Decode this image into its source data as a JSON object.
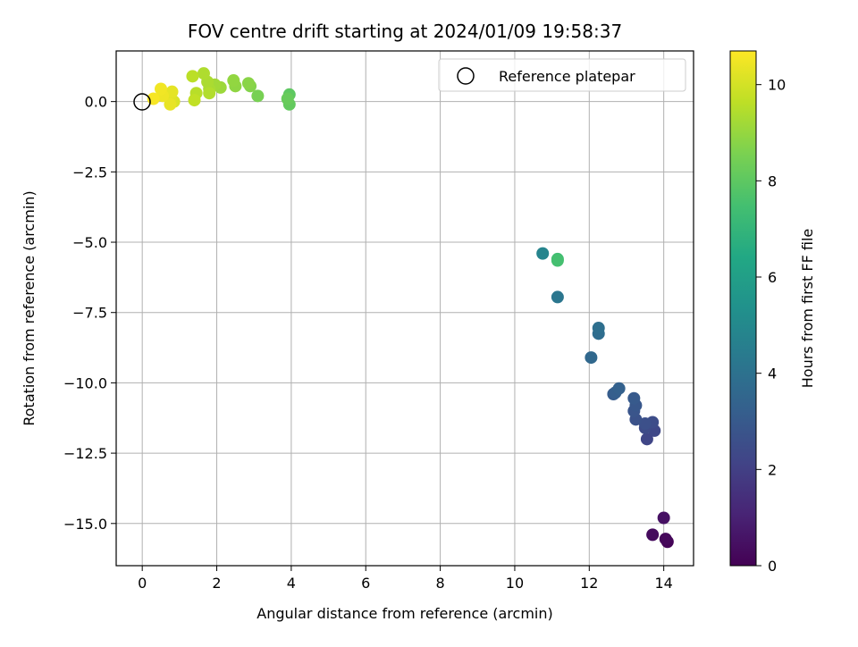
{
  "chart_data": {
    "type": "scatter",
    "title": "FOV centre drift starting at 2024/01/09 19:58:37",
    "xlabel": "Angular distance from reference (arcmin)",
    "ylabel": "Rotation from reference (arcmin)",
    "xlim": [
      -0.7,
      14.8
    ],
    "ylim": [
      -16.5,
      1.8
    ],
    "xticks": [
      0,
      2,
      4,
      6,
      8,
      10,
      12,
      14
    ],
    "xtick_labels": [
      "0",
      "2",
      "4",
      "6",
      "8",
      "10",
      "12",
      "14"
    ],
    "yticks": [
      0.0,
      -2.5,
      -5.0,
      -7.5,
      -10.0,
      -12.5,
      -15.0
    ],
    "ytick_labels": [
      "0.0",
      "−2.5",
      "−5.0",
      "−7.5",
      "−10.0",
      "−12.5",
      "−15.0"
    ],
    "grid": true,
    "legend": {
      "placement": "top-right",
      "entries": [
        "Reference platepar"
      ]
    },
    "reference": {
      "x": 0,
      "y": 0
    },
    "colorbar": {
      "label": "Hours from first FF file",
      "colormap": "viridis",
      "range": [
        0,
        10.7
      ],
      "ticks": [
        0,
        2,
        4,
        6,
        8,
        10
      ],
      "tick_labels": [
        "0",
        "2",
        "4",
        "6",
        "8",
        "10"
      ]
    },
    "points": [
      {
        "x": 14.1,
        "y": -15.65,
        "hours": 0.1
      },
      {
        "x": 14.05,
        "y": -15.55,
        "hours": 0.2
      },
      {
        "x": 13.7,
        "y": -15.4,
        "hours": 0.3
      },
      {
        "x": 14.0,
        "y": -14.8,
        "hours": 0.5
      },
      {
        "x": 13.55,
        "y": -12.0,
        "hours": 2.2
      },
      {
        "x": 13.75,
        "y": -11.7,
        "hours": 2.3
      },
      {
        "x": 13.5,
        "y": -11.6,
        "hours": 2.4
      },
      {
        "x": 13.7,
        "y": -11.4,
        "hours": 2.5
      },
      {
        "x": 13.5,
        "y": -11.45,
        "hours": 2.6
      },
      {
        "x": 13.25,
        "y": -11.3,
        "hours": 2.7
      },
      {
        "x": 13.2,
        "y": -11.0,
        "hours": 2.8
      },
      {
        "x": 13.25,
        "y": -10.8,
        "hours": 2.9
      },
      {
        "x": 13.2,
        "y": -10.55,
        "hours": 3.0
      },
      {
        "x": 12.65,
        "y": -10.4,
        "hours": 3.1
      },
      {
        "x": 12.7,
        "y": -10.35,
        "hours": 3.2
      },
      {
        "x": 12.8,
        "y": -10.2,
        "hours": 3.3
      },
      {
        "x": 12.05,
        "y": -9.1,
        "hours": 3.6
      },
      {
        "x": 12.25,
        "y": -8.25,
        "hours": 3.8
      },
      {
        "x": 12.25,
        "y": -8.05,
        "hours": 3.9
      },
      {
        "x": 11.15,
        "y": -6.95,
        "hours": 4.2
      },
      {
        "x": 10.75,
        "y": -5.4,
        "hours": 4.8
      },
      {
        "x": 11.15,
        "y": -5.6,
        "hours": 7.4
      },
      {
        "x": 11.15,
        "y": -5.65,
        "hours": 7.5
      },
      {
        "x": 3.95,
        "y": 0.25,
        "hours": 8.0
      },
      {
        "x": 3.95,
        "y": -0.1,
        "hours": 8.1
      },
      {
        "x": 3.9,
        "y": 0.1,
        "hours": 8.2
      },
      {
        "x": 3.1,
        "y": 0.2,
        "hours": 8.5
      },
      {
        "x": 2.9,
        "y": 0.55,
        "hours": 8.7
      },
      {
        "x": 2.85,
        "y": 0.65,
        "hours": 8.8
      },
      {
        "x": 2.5,
        "y": 0.55,
        "hours": 8.9
      },
      {
        "x": 2.45,
        "y": 0.75,
        "hours": 8.95
      },
      {
        "x": 2.1,
        "y": 0.5,
        "hours": 9.1
      },
      {
        "x": 1.95,
        "y": 0.6,
        "hours": 9.2
      },
      {
        "x": 1.8,
        "y": 0.45,
        "hours": 9.3
      },
      {
        "x": 1.75,
        "y": 0.7,
        "hours": 9.35
      },
      {
        "x": 1.65,
        "y": 1.0,
        "hours": 9.4
      },
      {
        "x": 1.8,
        "y": 0.3,
        "hours": 9.45
      },
      {
        "x": 1.45,
        "y": 0.3,
        "hours": 9.55
      },
      {
        "x": 1.35,
        "y": 0.9,
        "hours": 9.6
      },
      {
        "x": 1.4,
        "y": 0.05,
        "hours": 9.7
      },
      {
        "x": 0.85,
        "y": 0.0,
        "hours": 10.1
      },
      {
        "x": 0.75,
        "y": 0.1,
        "hours": 10.2
      },
      {
        "x": 0.8,
        "y": 0.35,
        "hours": 10.3
      },
      {
        "x": 0.75,
        "y": -0.1,
        "hours": 10.35
      },
      {
        "x": 0.55,
        "y": 0.2,
        "hours": 10.45
      },
      {
        "x": 0.5,
        "y": 0.45,
        "hours": 10.5
      },
      {
        "x": 0.3,
        "y": 0.1,
        "hours": 10.6
      }
    ]
  }
}
